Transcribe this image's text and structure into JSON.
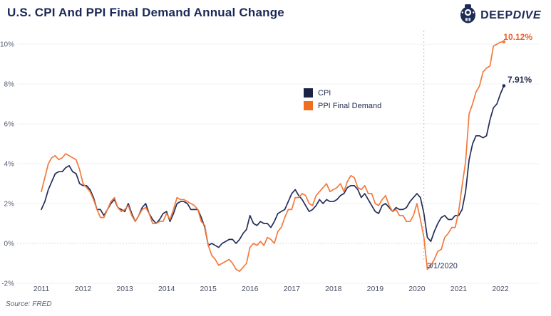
{
  "header": {
    "title": "U.S. CPI And PPI Final Demand Annual Change",
    "logo": {
      "brand_bold": "DEEP",
      "brand_italic": "DIVE"
    }
  },
  "footer": {
    "source": "Source: FRED"
  },
  "colors": {
    "cpi": "#232d58",
    "ppi": "#F5793B",
    "cpi_label": "#1b2447",
    "ppi_label": "#F4602F",
    "title_navy": "#1b2757",
    "tick_text": "#585e78",
    "grid": "#f0f0f4",
    "zero_grid": "#d9dade",
    "vline": "#b9bcc6"
  },
  "chart_data": {
    "type": "line",
    "title": "U.S. CPI And PPI Final Demand Annual Change",
    "xlabel": "",
    "ylabel": "",
    "frequency": "monthly",
    "x_start": "2011-01",
    "x_end": "2022-02",
    "x_ticks": [
      "2011",
      "2012",
      "2013",
      "2014",
      "2015",
      "2016",
      "2017",
      "2018",
      "2019",
      "2020",
      "2021",
      "2022"
    ],
    "y_ticks": [
      {
        "v": 10,
        "label": "10%"
      },
      {
        "v": 8,
        "label": "8%"
      },
      {
        "v": 6,
        "label": "6%"
      },
      {
        "v": 4,
        "label": "4%"
      },
      {
        "v": 2,
        "label": "2%"
      },
      {
        "v": 0,
        "label": "0%"
      },
      {
        "v": -2,
        "label": "-2%"
      }
    ],
    "ylim": [
      -2,
      10.5
    ],
    "grid": "horizontal",
    "legend_position": "inside-top-center",
    "series": [
      {
        "name": "CPI",
        "color": "#232d58",
        "values": [
          1.7,
          2.1,
          2.7,
          3.1,
          3.5,
          3.6,
          3.6,
          3.8,
          3.9,
          3.6,
          3.5,
          3.0,
          2.9,
          2.9,
          2.7,
          2.3,
          1.7,
          1.7,
          1.4,
          1.7,
          2.0,
          2.2,
          1.8,
          1.7,
          1.6,
          2.0,
          1.5,
          1.1,
          1.4,
          1.8,
          2.0,
          1.5,
          1.2,
          1.0,
          1.2,
          1.5,
          1.6,
          1.1,
          1.5,
          2.0,
          2.1,
          2.1,
          2.0,
          1.7,
          1.7,
          1.7,
          1.3,
          0.8,
          -0.1,
          0.0,
          -0.1,
          -0.2,
          0.0,
          0.1,
          0.2,
          0.2,
          0.0,
          0.2,
          0.5,
          0.7,
          1.4,
          1.0,
          0.9,
          1.1,
          1.0,
          1.0,
          0.8,
          1.1,
          1.5,
          1.6,
          1.7,
          2.1,
          2.5,
          2.7,
          2.4,
          2.2,
          1.9,
          1.6,
          1.7,
          1.9,
          2.2,
          2.0,
          2.2,
          2.1,
          2.1,
          2.2,
          2.4,
          2.5,
          2.8,
          2.9,
          2.9,
          2.7,
          2.3,
          2.5,
          2.2,
          1.9,
          1.6,
          1.5,
          1.9,
          2.0,
          1.8,
          1.6,
          1.8,
          1.7,
          1.7,
          1.8,
          2.1,
          2.3,
          2.5,
          2.3,
          1.5,
          0.3,
          0.1,
          0.6,
          1.0,
          1.3,
          1.4,
          1.2,
          1.2,
          1.4,
          1.4,
          1.7,
          2.6,
          4.2,
          5.0,
          5.4,
          5.4,
          5.3,
          5.4,
          6.2,
          6.8,
          7.0,
          7.5,
          7.91
        ]
      },
      {
        "name": "PPI Final Demand",
        "color": "#F5793B",
        "values": [
          2.6,
          3.3,
          4.0,
          4.3,
          4.4,
          4.2,
          4.3,
          4.5,
          4.4,
          4.3,
          4.2,
          3.7,
          3.0,
          2.8,
          2.6,
          2.2,
          1.7,
          1.3,
          1.3,
          1.7,
          2.1,
          2.3,
          1.8,
          1.6,
          1.7,
          1.9,
          1.4,
          1.1,
          1.4,
          1.7,
          1.8,
          1.5,
          1.0,
          1.0,
          1.1,
          1.1,
          1.5,
          1.2,
          1.7,
          2.3,
          2.2,
          2.2,
          2.1,
          2.0,
          1.9,
          1.7,
          1.1,
          0.9,
          -0.1,
          -0.6,
          -0.8,
          -1.1,
          -1.0,
          -0.9,
          -0.8,
          -1.0,
          -1.3,
          -1.4,
          -1.2,
          -1.0,
          -0.2,
          0.0,
          -0.1,
          0.1,
          -0.1,
          0.3,
          0.2,
          0.0,
          0.6,
          0.8,
          1.3,
          1.7,
          1.7,
          2.3,
          2.3,
          2.5,
          2.4,
          2.0,
          1.9,
          2.4,
          2.6,
          2.8,
          3.0,
          2.6,
          2.7,
          2.8,
          3.0,
          2.6,
          3.1,
          3.4,
          3.3,
          2.8,
          2.7,
          2.9,
          2.5,
          2.5,
          2.0,
          1.9,
          2.2,
          2.4,
          1.9,
          1.6,
          1.7,
          1.4,
          1.4,
          1.1,
          1.1,
          1.4,
          2.0,
          1.2,
          0.3,
          -1.3,
          -1.1,
          -0.8,
          -0.4,
          -0.3,
          0.3,
          0.5,
          0.8,
          0.8,
          1.6,
          2.9,
          4.1,
          6.5,
          7.0,
          7.6,
          7.9,
          8.6,
          8.8,
          8.9,
          9.9,
          10.0,
          10.1,
          10.12
        ]
      }
    ],
    "end_labels": [
      {
        "series": "PPI Final Demand",
        "text": "10.12%"
      },
      {
        "series": "CPI",
        "text": "7.91%"
      }
    ],
    "annotation": {
      "label": "3/1/2020",
      "month_index": 110
    }
  }
}
